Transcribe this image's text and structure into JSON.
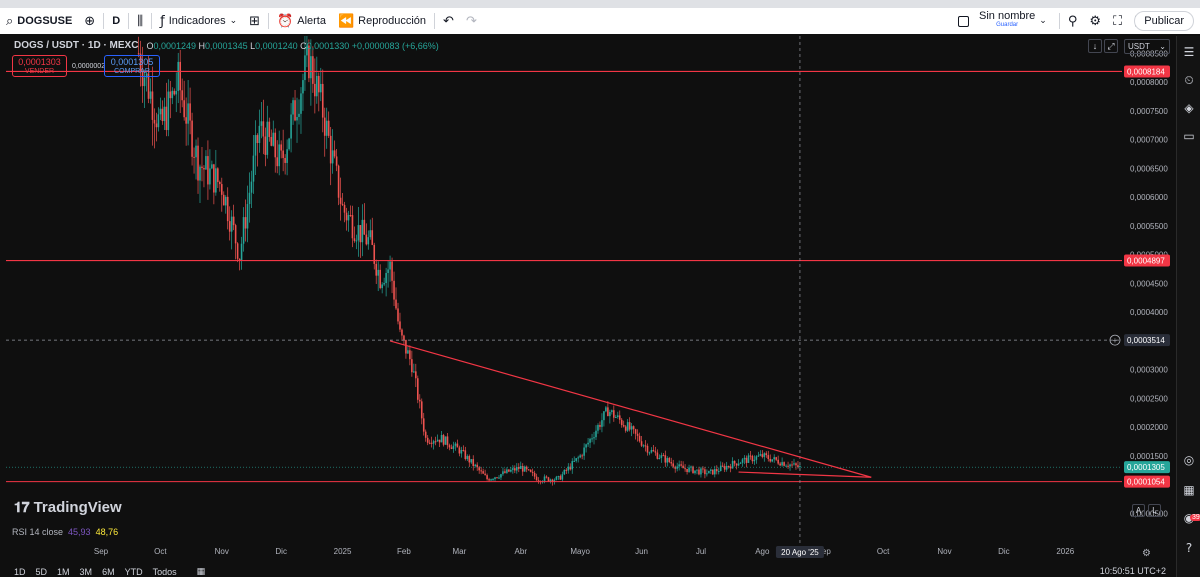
{
  "toolbar": {
    "symbol": "DOGSUSE",
    "interval": "D",
    "indicators_label": "Indicadores",
    "alert_label": "Alerta",
    "replay_label": "Reproducción",
    "layout_name": "Sin nombre",
    "save_label": "Guardar",
    "publish_label": "Publicar",
    "icons": [
      "search-icon",
      "plus-icon",
      "candles-icon",
      "indicators-icon",
      "grid-icon",
      "alarm-icon",
      "rewind-icon",
      "undo-icon",
      "redo-icon",
      "checkbox-icon",
      "magnifier-icon",
      "settings-icon",
      "fullscreen-icon",
      "camera-icon"
    ]
  },
  "legend": {
    "title": "DOGS / USDT · 1D · MEXC",
    "open_label": "O",
    "open": "0,0001249",
    "high_label": "H",
    "high": "0,0001345",
    "low_label": "L",
    "low": "0,0001240",
    "close_label": "C",
    "close": "0,0001330",
    "change": "+0,0000083 (+6,66%)",
    "sell_price": "0,0001303",
    "sell_label": "VENDER",
    "spread": "0,0000002",
    "buy_price": "0,0001305",
    "buy_label": "COMPRAR"
  },
  "currency_select": "USDT",
  "logo_text": "TradingView",
  "rsi": {
    "label": "RSI 14 close",
    "value_rsi": "45,93",
    "value_ma": "48,76"
  },
  "scale_buttons": {
    "auto": "A",
    "log": "L"
  },
  "timeframes": [
    "1D",
    "5D",
    "1M",
    "3M",
    "6M",
    "YTD",
    "Todos"
  ],
  "clock": "10:50:51 UTC+2",
  "notifications_count": "39",
  "colors": {
    "up": "#26a69a",
    "down": "#ef5350",
    "horizontal_line": "#f23645",
    "background": "#0f0f0f",
    "accent": "#2962ff"
  },
  "chart_data": {
    "type": "candlestick",
    "x_axis_labels": [
      "Sep",
      "Oct",
      "Nov",
      "Dic",
      "2025",
      "Feb",
      "Mar",
      "Abr",
      "Mayo",
      "Jun",
      "Jul",
      "Ago",
      "20 Ago '25",
      "Sep",
      "Oct",
      "Nov",
      "Dic",
      "2026"
    ],
    "y_axis_labels": [
      "0,0008500",
      "0,0008000",
      "0,0007500",
      "0,0007000",
      "0,0006500",
      "0,0006000",
      "0,0005500",
      "0,0005000",
      "0,0004500",
      "0,0004000",
      "0,0003500",
      "0,0003000",
      "0,0002500",
      "0,0002000",
      "0,0001500",
      "0,0000500"
    ],
    "ylim": [
      3e-05,
      0.00088
    ],
    "horizontal_lines": [
      {
        "price": 0.0008184,
        "label": "0,0008184"
      },
      {
        "price": 0.0004897,
        "label": "0,0004897"
      },
      {
        "price": 0.0001054,
        "label": "0,0001054"
      }
    ],
    "crosshair": {
      "price_label": "0,0003514",
      "date_label": "20 Ago '25"
    },
    "last_price": {
      "price": 0.0001305,
      "label": "0,0001305"
    },
    "trendlines": [
      {
        "from": [
          "2025-01-25",
          0.00035
        ],
        "to": [
          "2025-09-25",
          0.000113
        ]
      },
      {
        "from": [
          "2025-07-20",
          0.000122
        ],
        "to": [
          "2025-09-25",
          0.000113
        ]
      }
    ],
    "price_path": [
      [
        "2024-09-20",
        0.00085
      ],
      [
        "2024-10-01",
        0.00072
      ],
      [
        "2024-10-10",
        0.0008
      ],
      [
        "2024-10-20",
        0.00066
      ],
      [
        "2024-11-01",
        0.00062
      ],
      [
        "2024-11-10",
        0.0005
      ],
      [
        "2024-11-20",
        0.00072
      ],
      [
        "2024-12-01",
        0.00066
      ],
      [
        "2024-12-10",
        0.00078
      ],
      [
        "2024-12-15",
        0.00084
      ],
      [
        "2024-12-22",
        0.00075
      ],
      [
        "2025-01-01",
        0.00058
      ],
      [
        "2025-01-07",
        0.00055
      ],
      [
        "2025-01-15",
        0.00052
      ],
      [
        "2025-01-20",
        0.00046
      ],
      [
        "2025-01-25",
        0.00048
      ],
      [
        "2025-01-30",
        0.00036
      ],
      [
        "2025-02-05",
        0.00031
      ],
      [
        "2025-02-12",
        0.00018
      ],
      [
        "2025-02-20",
        0.00018
      ],
      [
        "2025-03-01",
        0.00016
      ],
      [
        "2025-03-15",
        0.00011
      ],
      [
        "2025-04-01",
        0.00013
      ],
      [
        "2025-04-10",
        0.00011
      ],
      [
        "2025-04-20",
        0.00011
      ],
      [
        "2025-05-01",
        0.00015
      ],
      [
        "2025-05-15",
        0.00023
      ],
      [
        "2025-05-25",
        0.0002
      ],
      [
        "2025-06-05",
        0.00016
      ],
      [
        "2025-06-20",
        0.00013
      ],
      [
        "2025-07-05",
        0.00012
      ],
      [
        "2025-07-20",
        0.00014
      ],
      [
        "2025-08-01",
        0.00015
      ],
      [
        "2025-08-10",
        0.00014
      ],
      [
        "2025-08-20",
        0.00013
      ]
    ]
  }
}
